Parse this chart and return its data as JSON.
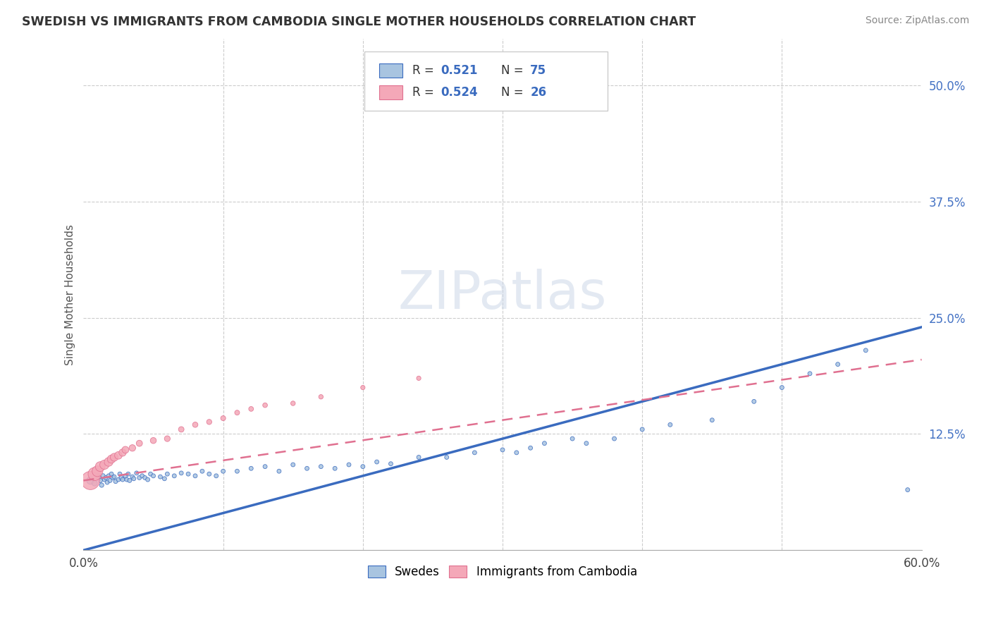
{
  "title": "SWEDISH VS IMMIGRANTS FROM CAMBODIA SINGLE MOTHER HOUSEHOLDS CORRELATION CHART",
  "source": "Source: ZipAtlas.com",
  "ylabel": "Single Mother Households",
  "xlim": [
    0.0,
    0.6
  ],
  "ylim": [
    0.0,
    0.55
  ],
  "swedes_color": "#a8c4e0",
  "cambodia_color": "#f4a8b8",
  "swedes_line_color": "#3a6bbf",
  "cambodia_line_color": "#e07090",
  "background_color": "#ffffff",
  "swedes_line_y0": 0.0,
  "swedes_line_y1": 0.24,
  "cambodia_line_x0": 0.0,
  "cambodia_line_x1": 0.6,
  "cambodia_line_y0": 0.075,
  "cambodia_line_y1": 0.205,
  "swedes_x": [
    0.005,
    0.008,
    0.01,
    0.011,
    0.012,
    0.013,
    0.014,
    0.015,
    0.016,
    0.017,
    0.018,
    0.019,
    0.02,
    0.021,
    0.022,
    0.023,
    0.025,
    0.026,
    0.027,
    0.028,
    0.03,
    0.031,
    0.032,
    0.033,
    0.035,
    0.036,
    0.038,
    0.04,
    0.042,
    0.044,
    0.046,
    0.048,
    0.05,
    0.055,
    0.058,
    0.06,
    0.065,
    0.07,
    0.075,
    0.08,
    0.085,
    0.09,
    0.095,
    0.1,
    0.11,
    0.12,
    0.13,
    0.14,
    0.15,
    0.16,
    0.17,
    0.18,
    0.19,
    0.2,
    0.21,
    0.22,
    0.24,
    0.26,
    0.28,
    0.3,
    0.31,
    0.32,
    0.33,
    0.35,
    0.36,
    0.38,
    0.4,
    0.42,
    0.45,
    0.48,
    0.5,
    0.52,
    0.54,
    0.56,
    0.59
  ],
  "swedes_y": [
    0.075,
    0.072,
    0.08,
    0.078,
    0.075,
    0.07,
    0.08,
    0.076,
    0.078,
    0.073,
    0.08,
    0.075,
    0.082,
    0.078,
    0.079,
    0.074,
    0.076,
    0.082,
    0.078,
    0.076,
    0.08,
    0.076,
    0.082,
    0.075,
    0.079,
    0.077,
    0.083,
    0.078,
    0.08,
    0.078,
    0.076,
    0.082,
    0.08,
    0.079,
    0.077,
    0.082,
    0.08,
    0.083,
    0.082,
    0.08,
    0.085,
    0.082,
    0.08,
    0.085,
    0.085,
    0.088,
    0.09,
    0.085,
    0.092,
    0.088,
    0.09,
    0.088,
    0.092,
    0.09,
    0.095,
    0.093,
    0.1,
    0.1,
    0.105,
    0.108,
    0.105,
    0.11,
    0.115,
    0.12,
    0.115,
    0.12,
    0.13,
    0.135,
    0.14,
    0.16,
    0.175,
    0.19,
    0.2,
    0.215,
    0.065
  ],
  "swedes_sizes": [
    60,
    30,
    25,
    22,
    20,
    20,
    20,
    18,
    18,
    18,
    18,
    18,
    18,
    18,
    18,
    18,
    18,
    18,
    18,
    18,
    18,
    18,
    18,
    18,
    18,
    18,
    18,
    18,
    18,
    18,
    18,
    18,
    18,
    18,
    18,
    18,
    18,
    18,
    18,
    18,
    18,
    18,
    18,
    18,
    18,
    18,
    18,
    18,
    18,
    18,
    18,
    18,
    18,
    18,
    18,
    18,
    18,
    18,
    18,
    18,
    18,
    18,
    18,
    18,
    18,
    18,
    18,
    18,
    18,
    18,
    18,
    18,
    18,
    18,
    18
  ],
  "cambodia_x": [
    0.005,
    0.008,
    0.01,
    0.012,
    0.015,
    0.018,
    0.02,
    0.022,
    0.025,
    0.028,
    0.03,
    0.035,
    0.04,
    0.05,
    0.06,
    0.07,
    0.08,
    0.09,
    0.1,
    0.11,
    0.12,
    0.13,
    0.15,
    0.17,
    0.2,
    0.24
  ],
  "cambodia_y": [
    0.075,
    0.082,
    0.085,
    0.09,
    0.092,
    0.095,
    0.098,
    0.1,
    0.102,
    0.105,
    0.108,
    0.11,
    0.115,
    0.118,
    0.12,
    0.13,
    0.135,
    0.138,
    0.142,
    0.148,
    0.152,
    0.156,
    0.158,
    0.165,
    0.175,
    0.185
  ],
  "cambodia_sizes": [
    350,
    180,
    120,
    100,
    90,
    80,
    70,
    65,
    60,
    55,
    50,
    45,
    40,
    38,
    35,
    32,
    30,
    28,
    26,
    25,
    24,
    23,
    22,
    21,
    20,
    20
  ]
}
